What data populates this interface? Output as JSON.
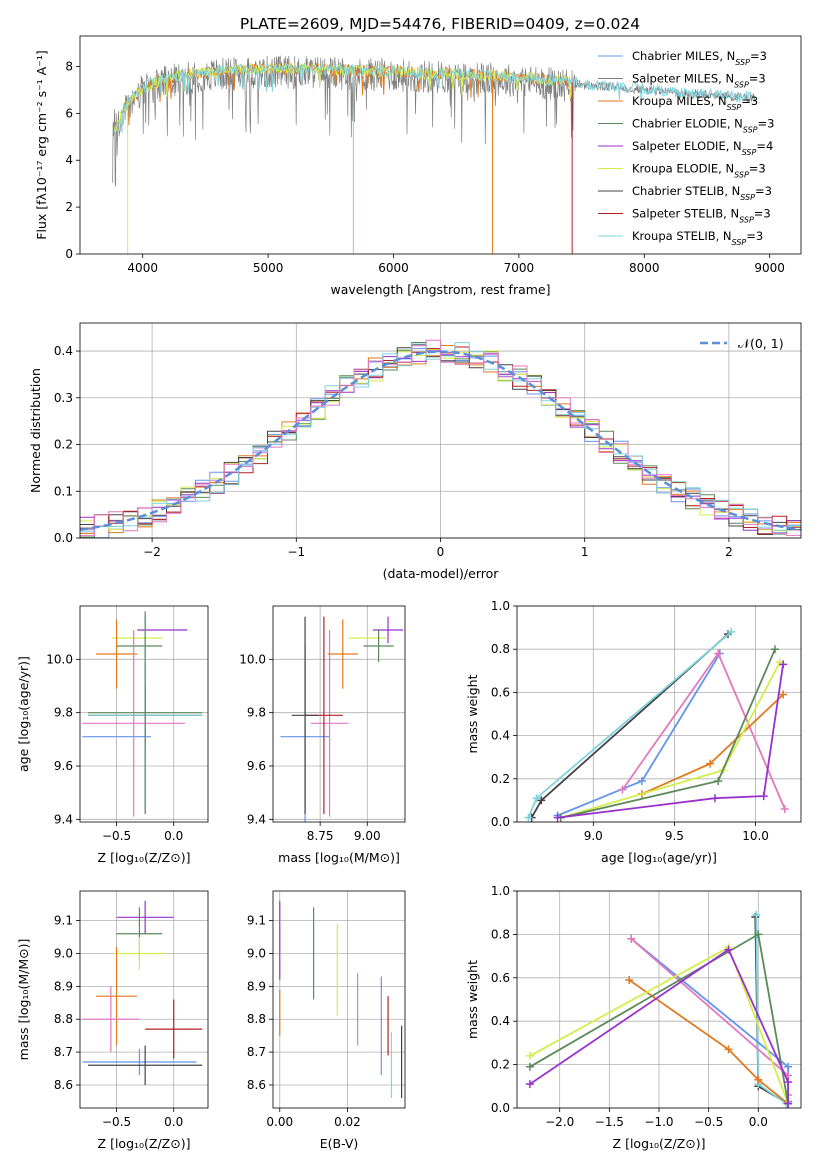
{
  "title": "PLATE=2609, MJD=54476, FIBERID=0409, z=0.024",
  "colors": {
    "Chabrier MILES": "#6495ed",
    "Salpeter MILES": "#808080",
    "Kroupa MILES": "#e07a1f",
    "Chabrier ELODIE": "#5a8a5a",
    "Salpeter ELODIE": "#9932cc",
    "Kroupa ELODIE": "#d4ed4a",
    "Chabrier STELIB": "#444444",
    "Salpeter STELIB": "#b22222",
    "Kroupa STELIB": "#7fd3de",
    "pink": "#e377c2",
    "grid": "#b0b0b0",
    "gauss": "#5b8fd9"
  },
  "legend_names": [
    "Chabrier MILES",
    "Salpeter MILES",
    "Kroupa MILES",
    "Chabrier ELODIE",
    "Salpeter ELODIE",
    "Kroupa ELODIE",
    "Chabrier STELIB",
    "Salpeter STELIB",
    "Kroupa STELIB"
  ],
  "chart_data": [
    {
      "id": "spectrum",
      "type": "line",
      "xlabel": "wavelength [Angstrom, rest frame]",
      "ylabel": "Flux [f_λ 10^-17 erg cm^-2 s^-1 A^-1]",
      "xlim": [
        3500,
        9250
      ],
      "ylim": [
        0,
        9.3
      ],
      "xticks": [
        4000,
        5000,
        6000,
        7000,
        8000,
        9000
      ],
      "yticks": [
        0,
        2,
        4,
        6,
        8
      ],
      "legend": [
        "Chabrier MILES, N_SSP=3",
        "Salpeter MILES, N_SSP=3",
        "Kroupa MILES, N_SSP=3",
        "Chabrier ELODIE, N_SSP=3",
        "Salpeter ELODIE, N_SSP=4",
        "Kroupa ELODIE, N_SSP=3",
        "Chabrier STELIB, N_SSP=3",
        "Salpeter STELIB, N_SSP=3",
        "Kroupa STELIB, N_SSP=3"
      ],
      "legend_loc": "right",
      "continuum": {
        "x": [
          3760,
          3900,
          4000,
          4200,
          4400,
          4600,
          4800,
          5000,
          5200,
          5400,
          5600,
          5800,
          6000,
          6200,
          6400,
          6600,
          6800,
          7000,
          7200,
          7400,
          7600,
          7800,
          8000,
          8200,
          8400,
          8600,
          8800
        ],
        "y": [
          5.2,
          6.6,
          7.1,
          7.5,
          7.7,
          7.8,
          7.85,
          7.9,
          7.9,
          7.9,
          7.85,
          7.8,
          7.8,
          7.7,
          7.7,
          7.65,
          7.6,
          7.55,
          7.45,
          7.35,
          7.2,
          7.15,
          7.05,
          6.95,
          6.85,
          6.8,
          6.7
        ]
      },
      "dips": [
        {
          "x": 5680,
          "y": 0
        },
        {
          "x": 6790,
          "y": 0
        },
        {
          "x": 7425,
          "y": 0
        },
        {
          "x": 3880,
          "y": 0
        }
      ]
    },
    {
      "id": "residuals",
      "type": "line",
      "xlabel": "(data-model)/error",
      "ylabel": "Normed distribution",
      "xlim": [
        -2.5,
        2.5
      ],
      "ylim": [
        0,
        0.46
      ],
      "xticks": [
        -2,
        -1,
        0,
        1,
        2
      ],
      "yticks": [
        0.0,
        0.1,
        0.2,
        0.3,
        0.4
      ],
      "legend": [
        "𝒩(0, 1)"
      ],
      "legend_loc": "upper right",
      "gaussian": {
        "mu": 0,
        "sigma": 1
      }
    },
    {
      "id": "age-vs-Z",
      "type": "errorbar",
      "xlabel": "Z [log₁₀(Z/Z⊙)]",
      "ylabel": "age  [log₁₀(age/yr)]",
      "xlim": [
        -0.82,
        0.3
      ],
      "ylim": [
        9.39,
        10.2
      ],
      "xticks": [
        -0.5,
        0.0
      ],
      "yticks": [
        9.4,
        9.6,
        9.8,
        10.0
      ],
      "points": [
        {
          "color": "Salpeter ELODIE",
          "x": -0.1,
          "y": 10.11,
          "xe": 0.22,
          "ye": 0.0
        },
        {
          "color": "Kroupa ELODIE",
          "x": -0.32,
          "y": 10.08,
          "xe": 0.22,
          "ye": 0.0
        },
        {
          "color": "Chabrier ELODIE",
          "x": -0.3,
          "y": 10.05,
          "xe": 0.2,
          "ye": 0.0
        },
        {
          "color": "Kroupa MILES",
          "x": -0.5,
          "y": 10.02,
          "xe": 0.18,
          "ye": 0.13
        },
        {
          "color": "pink",
          "x": -0.35,
          "y": 9.76,
          "xe": 0.45,
          "ye": 0.35
        },
        {
          "color": "Chabrier MILES",
          "x": -0.5,
          "y": 9.71,
          "xe": 0.3,
          "ye": 0.0
        },
        {
          "color": "Chabrier STELIB",
          "x": -0.25,
          "y": 9.79,
          "xe": 0.5,
          "ye": 0.12
        },
        {
          "color": "Kroupa STELIB",
          "x": -0.25,
          "y": 9.79,
          "xe": 0.5,
          "ye": 0.37
        },
        {
          "color": "Chabrier ELODIE",
          "x": -0.25,
          "y": 9.8,
          "xe": 0.5,
          "ye": 0.38
        }
      ]
    },
    {
      "id": "age-vs-mass",
      "type": "errorbar",
      "xlabel": "mass [log₁₀(M/M⊙)]",
      "ylabel": "",
      "xlim": [
        8.5,
        9.2
      ],
      "ylim": [
        9.39,
        10.2
      ],
      "xticks": [
        8.75,
        9.0
      ],
      "yticks": [
        9.4,
        9.6,
        9.8,
        10.0
      ],
      "points": [
        {
          "color": "Salpeter ELODIE",
          "x": 9.11,
          "y": 10.11,
          "xe": 0.08,
          "ye": 0.05
        },
        {
          "color": "Kroupa ELODIE",
          "x": 9.0,
          "y": 10.08,
          "xe": 0.1,
          "ye": 0.0
        },
        {
          "color": "Chabrier ELODIE",
          "x": 9.06,
          "y": 10.05,
          "xe": 0.08,
          "ye": 0.06
        },
        {
          "color": "Kroupa MILES",
          "x": 8.87,
          "y": 10.02,
          "xe": 0.08,
          "ye": 0.13
        },
        {
          "color": "pink",
          "x": 8.8,
          "y": 9.76,
          "xe": 0.1,
          "ye": 0.35
        },
        {
          "color": "Chabrier MILES",
          "x": 8.67,
          "y": 9.71,
          "xe": 0.13,
          "ye": 0.35
        },
        {
          "color": "Salpeter STELIB",
          "x": 8.77,
          "y": 9.79,
          "xe": 0.1,
          "ye": 0.37
        },
        {
          "color": "Chabrier STELIB",
          "x": 8.67,
          "y": 9.79,
          "xe": 0.07,
          "ye": 0.37
        }
      ]
    },
    {
      "id": "massweight-vs-age",
      "type": "line",
      "xlabel": "age  [log₁₀(age/yr)]",
      "ylabel": "mass weight",
      "xlim": [
        8.53,
        10.28
      ],
      "ylim": [
        0.0,
        1.0
      ],
      "xticks": [
        9.0,
        9.5,
        10.0
      ],
      "yticks": [
        0.0,
        0.2,
        0.4,
        0.6,
        0.8,
        1.0
      ],
      "series": [
        {
          "color": "Chabrier STELIB",
          "x": [
            8.62,
            8.68,
            9.83
          ],
          "y": [
            0.02,
            0.1,
            0.87
          ]
        },
        {
          "color": "Kroupa STELIB",
          "x": [
            8.6,
            8.65,
            9.85
          ],
          "y": [
            0.02,
            0.11,
            0.88
          ]
        },
        {
          "color": "Chabrier MILES",
          "x": [
            8.78,
            9.3,
            9.78
          ],
          "y": [
            0.03,
            0.19,
            0.78
          ]
        },
        {
          "color": "pink",
          "x": [
            9.18,
            9.77,
            10.18
          ],
          "y": [
            0.15,
            0.78,
            0.06
          ]
        },
        {
          "color": "Kroupa MILES",
          "x": [
            9.3,
            9.72,
            10.17
          ],
          "y": [
            0.13,
            0.27,
            0.59
          ]
        },
        {
          "color": "Kroupa ELODIE",
          "x": [
            8.8,
            9.8,
            10.15
          ],
          "y": [
            0.02,
            0.24,
            0.74
          ]
        },
        {
          "color": "Chabrier ELODIE",
          "x": [
            8.8,
            9.77,
            10.12
          ],
          "y": [
            0.02,
            0.19,
            0.8
          ]
        },
        {
          "color": "Salpeter ELODIE",
          "x": [
            8.78,
            9.75,
            10.05,
            10.17
          ],
          "y": [
            0.02,
            0.11,
            0.12,
            0.73
          ]
        }
      ]
    },
    {
      "id": "mass-vs-Z",
      "type": "errorbar",
      "xlabel": "Z [log₁₀(Z/Z⊙)]",
      "ylabel": "mass [log₁₀(M/M⊙)]",
      "xlim": [
        -0.82,
        0.3
      ],
      "ylim": [
        8.53,
        9.19
      ],
      "xticks": [
        -0.5,
        0.0
      ],
      "yticks": [
        8.6,
        8.7,
        8.8,
        8.9,
        9.0,
        9.1
      ],
      "points": [
        {
          "color": "Salpeter ELODIE",
          "x": -0.25,
          "y": 9.11,
          "xe": 0.25,
          "ye": 0.05
        },
        {
          "color": "Chabrier ELODIE",
          "x": -0.3,
          "y": 9.06,
          "xe": 0.2,
          "ye": 0.08
        },
        {
          "color": "Kroupa ELODIE",
          "x": -0.3,
          "y": 9.0,
          "xe": 0.22,
          "ye": 0.05
        },
        {
          "color": "Kroupa MILES",
          "x": -0.5,
          "y": 8.87,
          "xe": 0.18,
          "ye": 0.15
        },
        {
          "color": "pink",
          "x": -0.55,
          "y": 8.8,
          "xe": 0.25,
          "ye": 0.1
        },
        {
          "color": "Salpeter STELIB",
          "x": 0.0,
          "y": 8.77,
          "xe": 0.25,
          "ye": 0.09
        },
        {
          "color": "Chabrier MILES",
          "x": -0.3,
          "y": 8.67,
          "xe": 0.5,
          "ye": 0.04
        },
        {
          "color": "Chabrier STELIB",
          "x": -0.25,
          "y": 8.66,
          "xe": 0.5,
          "ye": 0.06
        }
      ]
    },
    {
      "id": "mass-vs-EBV",
      "type": "errorbar",
      "xlabel": "E(B-V)",
      "ylabel": "",
      "xlim": [
        -0.002,
        0.037
      ],
      "ylim": [
        8.53,
        9.19
      ],
      "xticks": [
        0.0,
        0.02
      ],
      "yticks": [
        8.6,
        8.7,
        8.8,
        8.9,
        9.0,
        9.1
      ],
      "points": [
        {
          "color": "Salpeter ELODIE",
          "x": 0.0,
          "y": 9.04,
          "xe": 0,
          "ye": 0.12
        },
        {
          "color": "Kroupa MILES",
          "x": 0.0,
          "y": 8.82,
          "xe": 0,
          "ye": 0.07
        },
        {
          "color": "Chabrier ELODIE",
          "x": 0.01,
          "y": 9.0,
          "xe": 0,
          "ye": 0.14
        },
        {
          "color": "Kroupa ELODIE",
          "x": 0.017,
          "y": 8.95,
          "xe": 0,
          "ye": 0.14
        },
        {
          "color": "pink",
          "x": 0.023,
          "y": 8.83,
          "xe": 0,
          "ye": 0.11
        },
        {
          "color": "Chabrier MILES",
          "x": 0.03,
          "y": 8.78,
          "xe": 0,
          "ye": 0.15
        },
        {
          "color": "Salpeter STELIB",
          "x": 0.032,
          "y": 8.78,
          "xe": 0,
          "ye": 0.09
        },
        {
          "color": "Kroupa STELIB",
          "x": 0.033,
          "y": 8.66,
          "xe": 0,
          "ye": 0.1
        },
        {
          "color": "Chabrier STELIB",
          "x": 0.036,
          "y": 8.67,
          "xe": 0,
          "ye": 0.11
        }
      ]
    },
    {
      "id": "massweight-vs-Z",
      "type": "line",
      "xlabel": "Z [log₁₀(Z/Z⊙)]",
      "ylabel": "mass weight",
      "xlim": [
        -2.43,
        0.43
      ],
      "ylim": [
        0.0,
        1.0
      ],
      "xticks": [
        -2.0,
        -1.5,
        -1.0,
        -0.5,
        0.0
      ],
      "yticks": [
        0.0,
        0.2,
        0.4,
        0.6,
        0.8,
        1.0
      ],
      "series": [
        {
          "color": "Chabrier STELIB",
          "x": [
            -0.03,
            0.0,
            0.3
          ],
          "y": [
            0.88,
            0.1,
            0.02
          ]
        },
        {
          "color": "Kroupa STELIB",
          "x": [
            -0.02,
            0.0,
            0.28
          ],
          "y": [
            0.89,
            0.11,
            0.02
          ]
        },
        {
          "color": "Chabrier MILES",
          "x": [
            -1.28,
            0.3,
            0.3
          ],
          "y": [
            0.78,
            0.19,
            0.03
          ]
        },
        {
          "color": "pink",
          "x": [
            -1.28,
            0.3,
            0.3
          ],
          "y": [
            0.78,
            0.15,
            0.06
          ]
        },
        {
          "color": "Kroupa MILES",
          "x": [
            -1.3,
            -0.3,
            0.0,
            0.3
          ],
          "y": [
            0.59,
            0.27,
            0.13,
            0.02
          ]
        },
        {
          "color": "Kroupa ELODIE",
          "x": [
            -2.3,
            -0.3,
            0.3
          ],
          "y": [
            0.24,
            0.74,
            0.02
          ]
        },
        {
          "color": "Chabrier ELODIE",
          "x": [
            -2.3,
            0.0,
            0.3
          ],
          "y": [
            0.19,
            0.8,
            0.02
          ]
        },
        {
          "color": "Salpeter ELODIE",
          "x": [
            -2.3,
            -0.3,
            0.3,
            0.3
          ],
          "y": [
            0.11,
            0.73,
            0.12,
            0.02
          ]
        }
      ]
    }
  ]
}
